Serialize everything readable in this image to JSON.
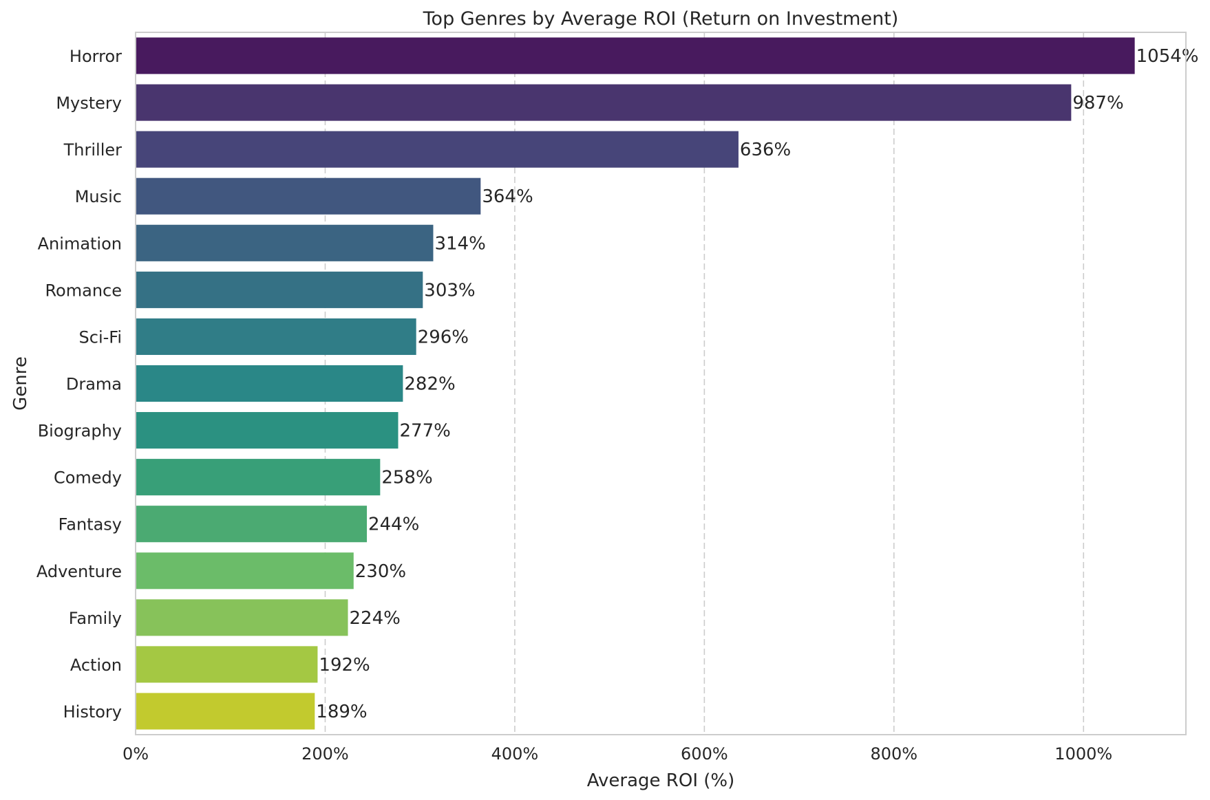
{
  "chart_data": {
    "type": "bar",
    "orientation": "horizontal",
    "title": "Top Genres by Average ROI (Return on Investment)",
    "xlabel": "Average ROI (%)",
    "ylabel": "Genre",
    "categories": [
      "Horror",
      "Mystery",
      "Thriller",
      "Music",
      "Animation",
      "Romance",
      "Sci-Fi",
      "Drama",
      "Biography",
      "Comedy",
      "Fantasy",
      "Adventure",
      "Family",
      "Action",
      "History"
    ],
    "values": [
      1054,
      987,
      636,
      364,
      314,
      303,
      296,
      282,
      277,
      258,
      244,
      230,
      224,
      192,
      189
    ],
    "value_labels": [
      "1054%",
      "987%",
      "636%",
      "364%",
      "314%",
      "303%",
      "296%",
      "282%",
      "277%",
      "258%",
      "244%",
      "230%",
      "224%",
      "192%",
      "189%"
    ],
    "xlim": [
      0,
      1108
    ],
    "xticks": [
      0,
      200,
      400,
      600,
      800,
      1000
    ],
    "xtick_labels": [
      "0%",
      "200%",
      "400%",
      "600%",
      "800%",
      "1000%"
    ],
    "grid": "vertical dashed",
    "colors": [
      "#481a5e",
      "#49356e",
      "#474579",
      "#41577f",
      "#3b6482",
      "#357185",
      "#307d87",
      "#2a8787",
      "#2b9181",
      "#389f78",
      "#4baa72",
      "#6bbc69",
      "#87c25a",
      "#a4c843",
      "#c2ca2e"
    ]
  }
}
